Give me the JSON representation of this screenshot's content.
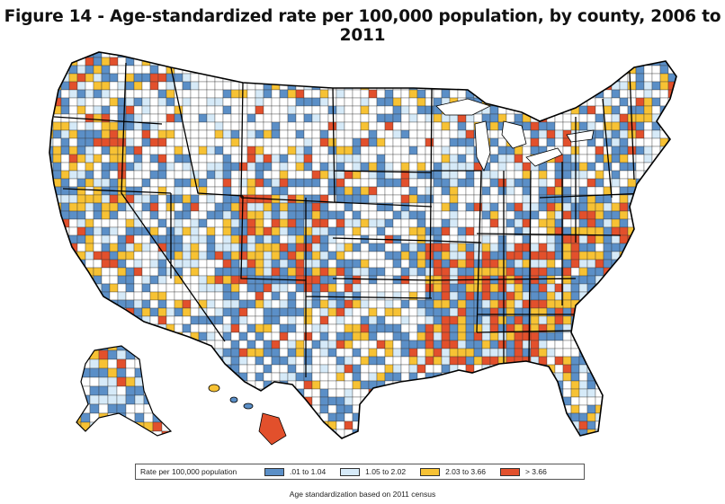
{
  "title": "Figure 14 - Age-standardized rate per 100,000 population, by county, 2006 to 2011",
  "legend": {
    "label": "Rate per 100,000 population",
    "items": [
      {
        "label": ".01 to 1.04",
        "color": "#5b8fc7",
        "class": "c1"
      },
      {
        "label": "1.05 to 2.02",
        "color": "#d6eaf8",
        "class": "c2"
      },
      {
        "label": "2.03 to 3.66",
        "color": "#f7c234",
        "class": "c3"
      },
      {
        "label": "> 3.66",
        "color": "#e2502c",
        "class": "c4"
      }
    ]
  },
  "note": "Age standardization based on 2011 census",
  "colors": {
    "none": "#ffffff",
    "border": "#222222",
    "state_border": "#000000"
  }
}
